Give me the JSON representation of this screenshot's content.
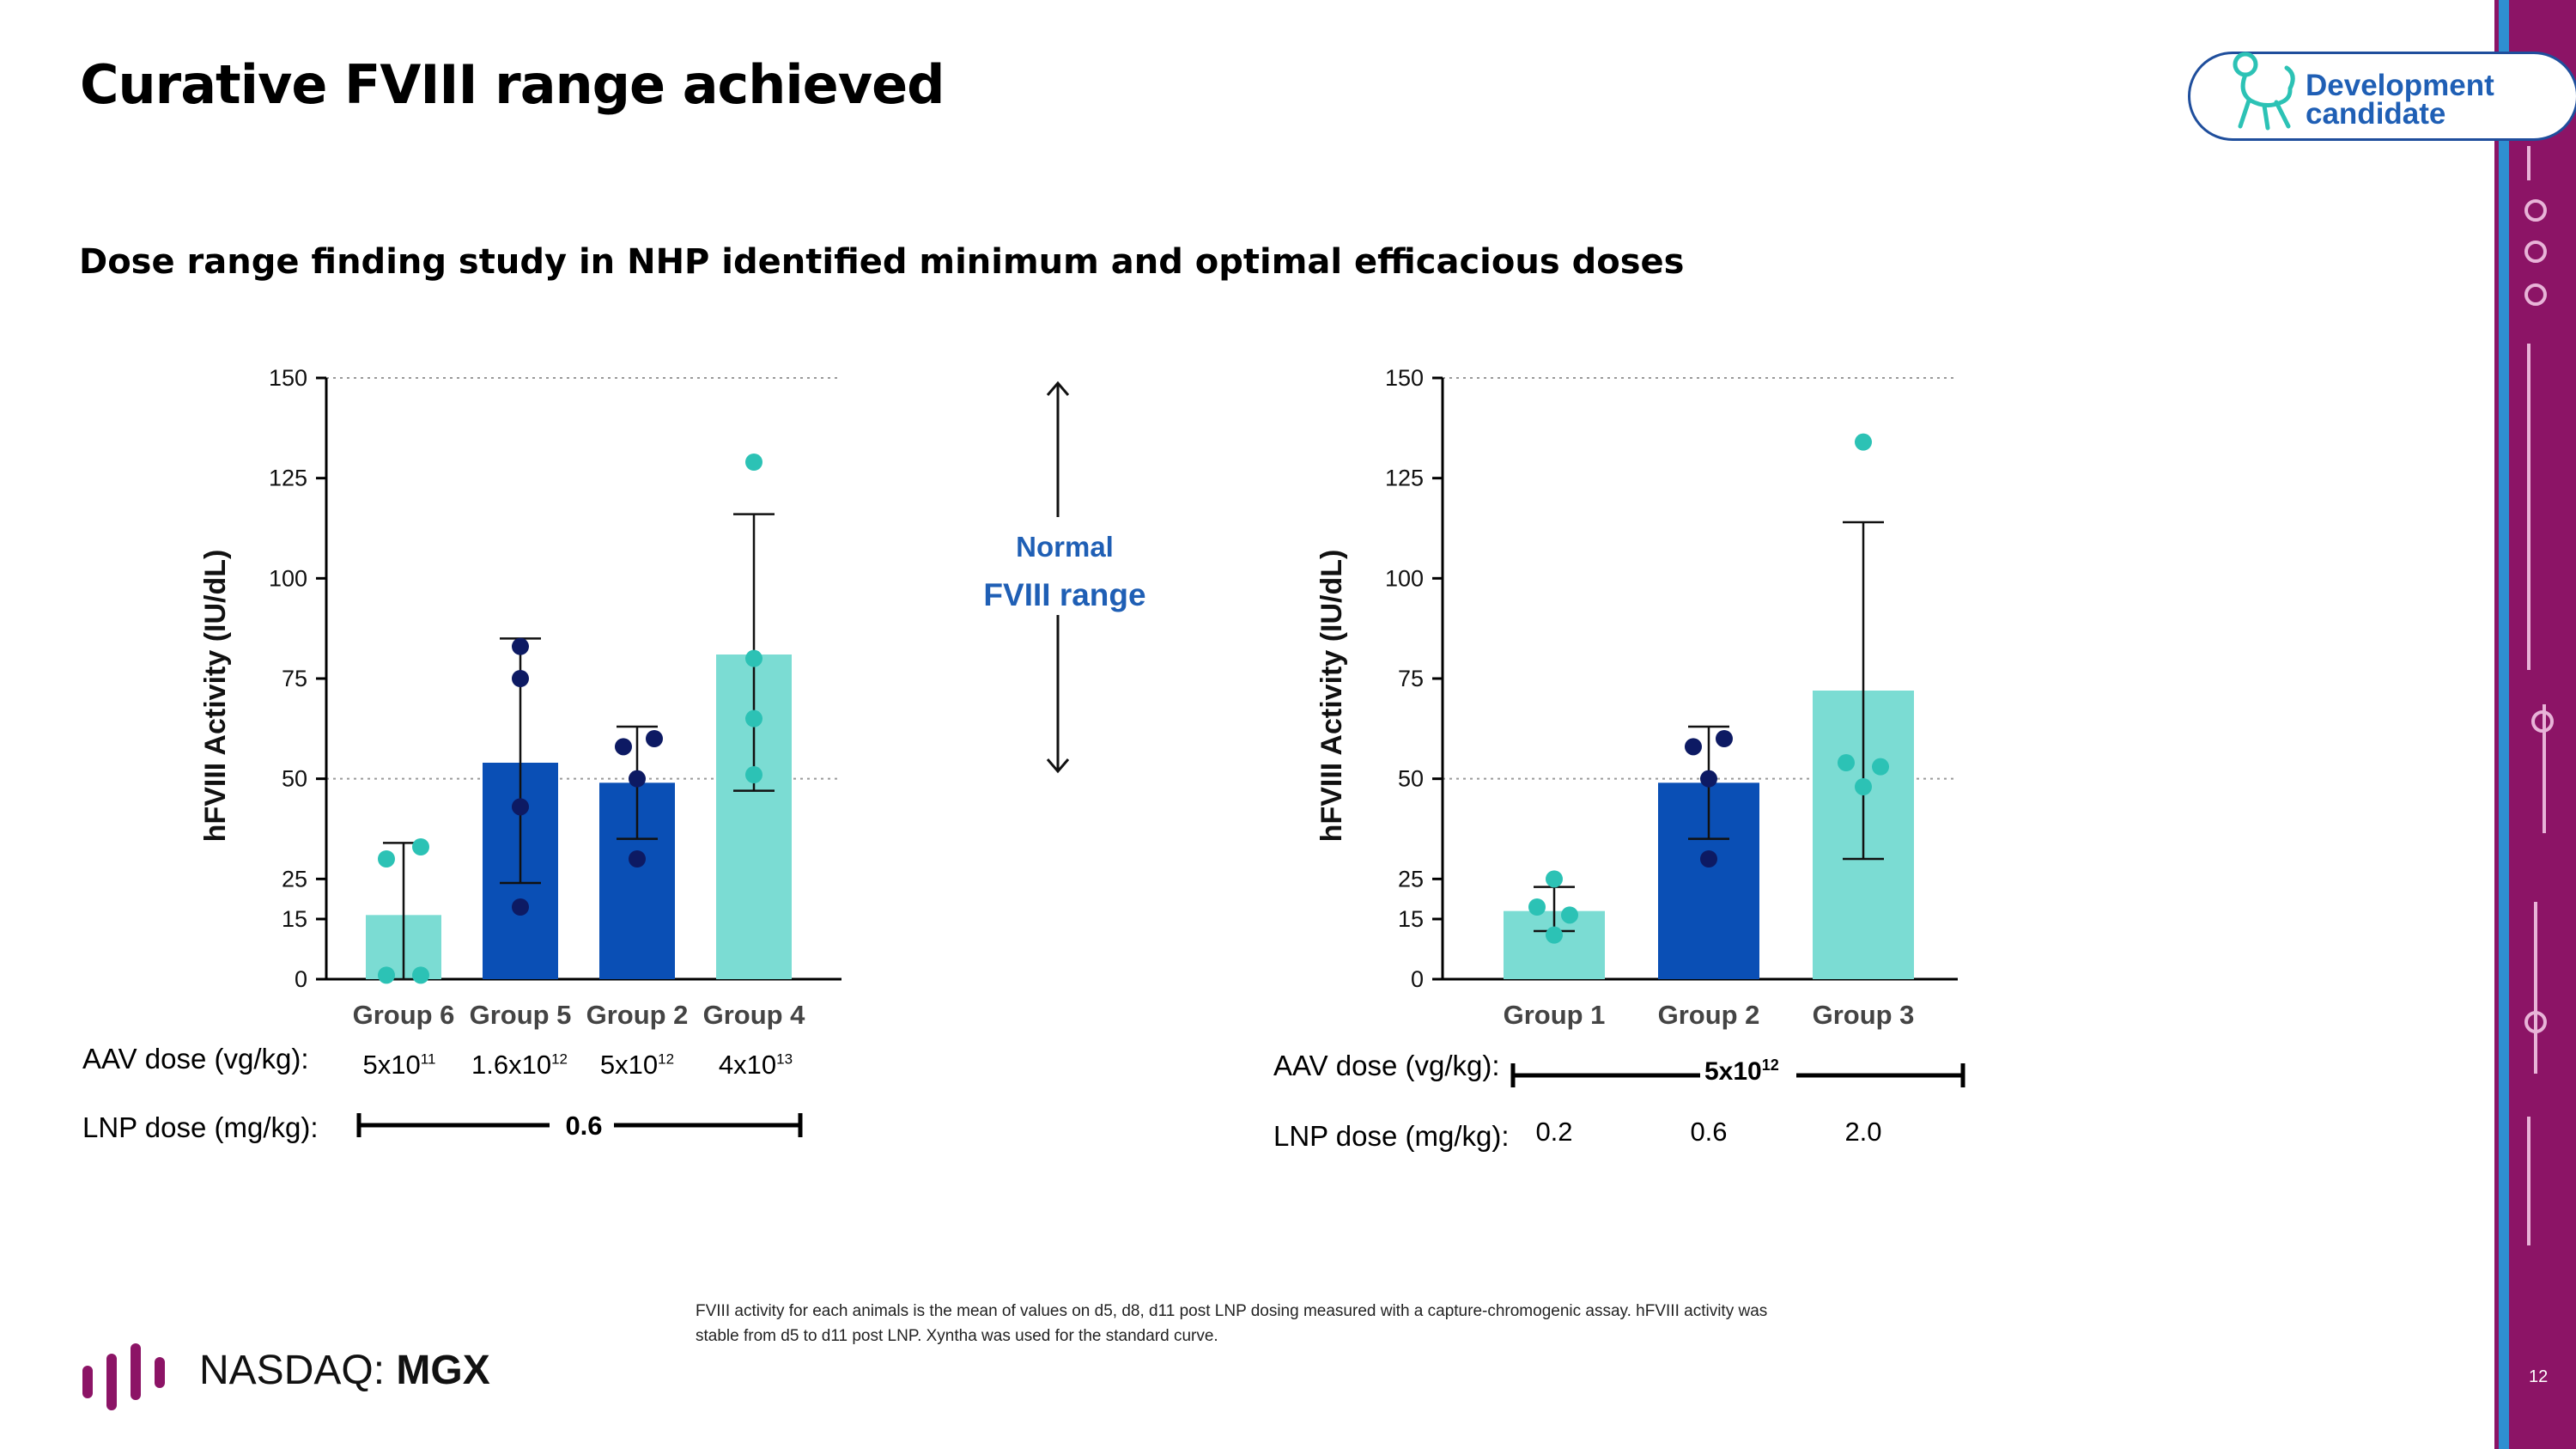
{
  "slide": {
    "title": "Curative FVIII range achieved",
    "subtitle": "Dose range finding study in NHP identified minimum and optimal efficacious doses",
    "badge": "Development\ncandidate",
    "page_number": "12",
    "footnote": "FVIII activity for each animals is the mean of values on d5, d8, d11 post LNP dosing measured with a capture-chromogenic assay. hFVIII activity was stable from d5 to d11 post LNP. Xyntha was used for the standard curve.",
    "exchange": "NASDAQ: ",
    "ticker": "MGX",
    "normal_range_line1": "Normal",
    "normal_range_line2": "FVIII range",
    "colors": {
      "dark_blue": "#0a4fb5",
      "teal": "#7bdcd3",
      "navy_point": "#0d1a63",
      "teal_point": "#2cc2b5",
      "accent_blue": "#1f5fb5",
      "brand_magenta": "#8c1466"
    }
  },
  "left_table": {
    "aav_label": "AAV dose (vg/kg):",
    "lnp_label": "LNP dose (mg/kg):",
    "aav_doses": [
      {
        "base": "5x10",
        "exp": "11"
      },
      {
        "base": "1.6x10",
        "exp": "12"
      },
      {
        "base": "5x10",
        "exp": "12"
      },
      {
        "base": "4x10",
        "exp": "13"
      }
    ],
    "lnp_shared": "0.6"
  },
  "right_table": {
    "aav_label": "AAV dose (vg/kg):",
    "lnp_label": "LNP dose (mg/kg):",
    "aav_shared_base": "5x10",
    "aav_shared_exp": "12",
    "lnp_doses": [
      "0.2",
      "0.6",
      "2.0"
    ]
  },
  "chart_data": [
    {
      "type": "bar",
      "ylabel": "hFVIII Activity (IU/dL)",
      "ylim": [
        0,
        150
      ],
      "yticks": [
        0,
        15,
        25,
        50,
        75,
        100,
        125,
        150
      ],
      "reference_lines": [
        50,
        150
      ],
      "categories": [
        "Group 6",
        "Group 5",
        "Group 2",
        "Group 4"
      ],
      "values": [
        16,
        54,
        49,
        81
      ],
      "colors": [
        "#7bdcd3",
        "#0a4fb5",
        "#0a4fb5",
        "#7bdcd3"
      ],
      "error_upper": [
        34,
        85,
        63,
        116
      ],
      "error_lower": [
        0,
        24,
        35,
        47
      ],
      "points": [
        [
          30,
          33,
          1,
          1
        ],
        [
          83,
          75,
          43,
          18
        ],
        [
          58,
          60,
          50,
          30
        ],
        [
          129,
          80,
          65,
          51
        ]
      ],
      "point_colors": [
        "#2cc2b5",
        "#0d1a63",
        "#0d1a63",
        "#2cc2b5"
      ]
    },
    {
      "type": "bar",
      "ylabel": "hFVIII Activity (IU/dL)",
      "ylim": [
        0,
        150
      ],
      "yticks": [
        0,
        15,
        25,
        50,
        75,
        100,
        125,
        150
      ],
      "reference_lines": [
        50,
        150
      ],
      "categories": [
        "Group 1",
        "Group 2",
        "Group 3"
      ],
      "values": [
        17,
        49,
        72
      ],
      "colors": [
        "#7bdcd3",
        "#0a4fb5",
        "#7bdcd3"
      ],
      "error_upper": [
        23,
        63,
        114
      ],
      "error_lower": [
        12,
        35,
        30
      ],
      "points": [
        [
          25,
          18,
          16,
          11
        ],
        [
          58,
          60,
          50,
          30
        ],
        [
          134,
          54,
          53,
          48
        ]
      ],
      "point_colors": [
        "#2cc2b5",
        "#0d1a63",
        "#2cc2b5"
      ]
    }
  ]
}
